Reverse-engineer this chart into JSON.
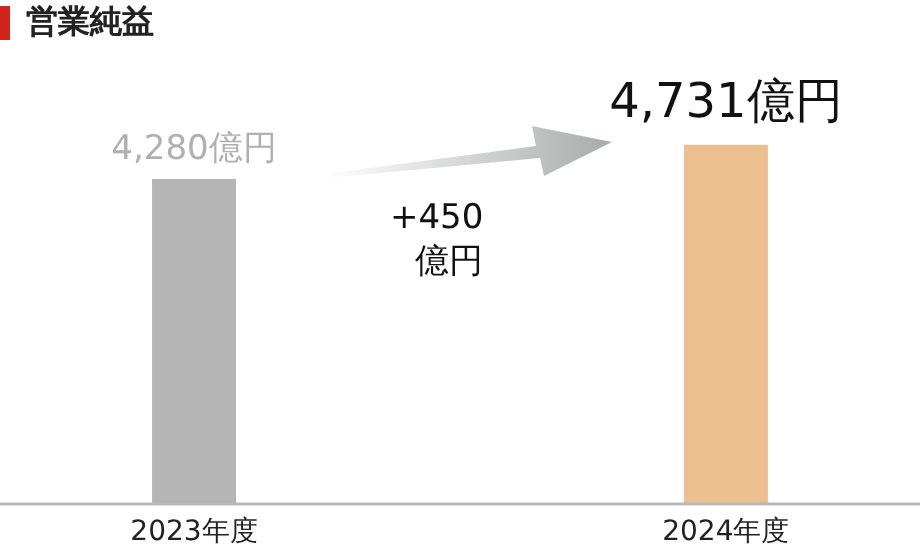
{
  "chart_data": {
    "type": "bar",
    "title": "営業純益",
    "categories": [
      "2023年度",
      "2024年度"
    ],
    "values": [
      4280,
      4731
    ],
    "colors": [
      "#b4b5b4",
      "#ebbf90"
    ],
    "value_labels": [
      "4,280億円",
      "4,731億円"
    ],
    "annotations": [
      "+450\n億円"
    ]
  }
}
